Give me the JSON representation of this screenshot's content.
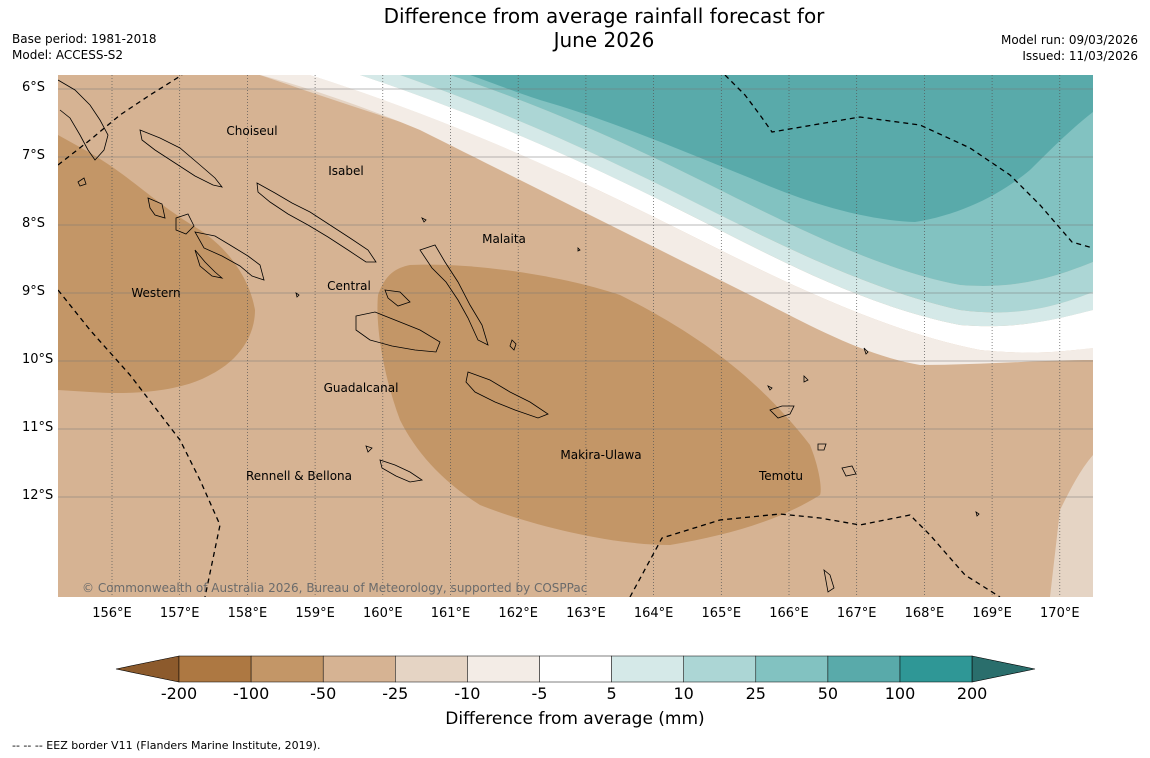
{
  "title": {
    "line1": "Difference from average rainfall forecast for",
    "line2": "June 2026"
  },
  "meta_left": {
    "base_period": "Base period: 1981-2018",
    "model": "Model: ACCESS-S2"
  },
  "meta_right": {
    "model_run": "Model run: 09/03/2026",
    "issued": "Issued: 11/03/2026"
  },
  "y_axis": [
    "6°S",
    "7°S",
    "8°S",
    "9°S",
    "10°S",
    "11°S",
    "12°S"
  ],
  "x_axis": [
    "156°E",
    "157°E",
    "158°E",
    "159°E",
    "160°E",
    "161°E",
    "162°E",
    "163°E",
    "164°E",
    "165°E",
    "166°E",
    "167°E",
    "168°E",
    "169°E",
    "170°E"
  ],
  "regions": [
    "Choiseul",
    "Isabel",
    "Malaita",
    "Western",
    "Central",
    "Guadalcanal",
    "Makira-Ulawa",
    "Rennell & Bellona",
    "Temotu"
  ],
  "copyright": "© Commonwealth of Australia 2026, Bureau of Meteorology, supported by COSPPac",
  "colorbar": {
    "ticks": [
      "-200",
      "-100",
      "-50",
      "-25",
      "-10",
      "-5",
      "5",
      "10",
      "25",
      "50",
      "100",
      "200"
    ],
    "colors": [
      "#ad7842",
      "#c39667",
      "#d6b393",
      "#e5d4c4",
      "#f3ece6",
      "#ffffff",
      "#d5e9e8",
      "#acd6d5",
      "#82c2c1",
      "#59aaaa",
      "#2f9796"
    ],
    "min_color": "#8c5a2c",
    "max_color": "#2a6e6c",
    "title": "Difference from average (mm)"
  },
  "eez_note": "--  --  -- EEZ border V11 (Flanders Marine Institute, 2019)."
}
